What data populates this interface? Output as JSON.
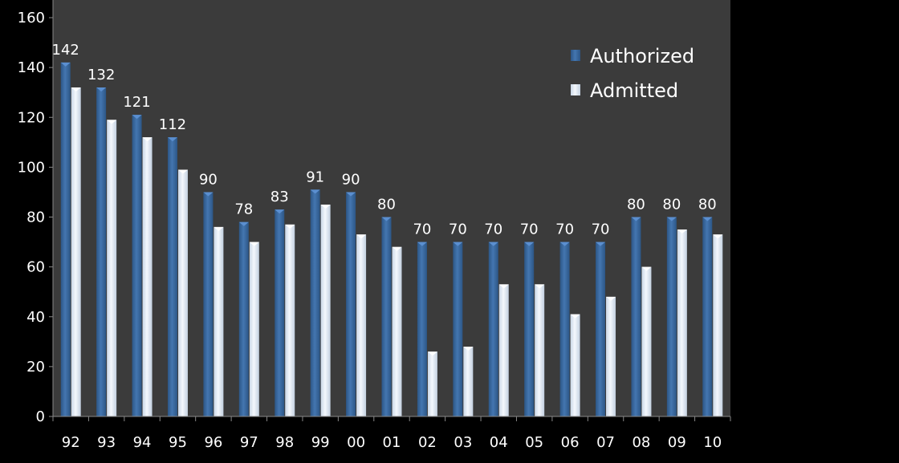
{
  "chart_data": {
    "type": "bar",
    "title": "",
    "xlabel": "",
    "ylabel": "",
    "ylim": [
      0,
      160
    ],
    "yticks": [
      0,
      20,
      40,
      60,
      80,
      100,
      120,
      140,
      160
    ],
    "categories": [
      "92",
      "93",
      "94",
      "95",
      "96",
      "97",
      "98",
      "99",
      "00",
      "01",
      "02",
      "03",
      "04",
      "05",
      "06",
      "07",
      "08",
      "09",
      "10"
    ],
    "series": [
      {
        "name": "Authorized",
        "color": "#3a6ba3",
        "values": [
          142,
          132,
          121,
          112,
          90,
          78,
          83,
          91,
          90,
          80,
          70,
          70,
          70,
          70,
          70,
          70,
          80,
          80,
          80
        ],
        "data_labels": true
      },
      {
        "name": "Admitted",
        "color": "#e6f0fb",
        "values": [
          132,
          119,
          112,
          99,
          76,
          70,
          77,
          85,
          73,
          68,
          26,
          28,
          53,
          53,
          41,
          48,
          60,
          75,
          73
        ],
        "data_labels": false
      }
    ],
    "legend_position": "top-right",
    "grid": false,
    "background": "#3b3b3b"
  }
}
